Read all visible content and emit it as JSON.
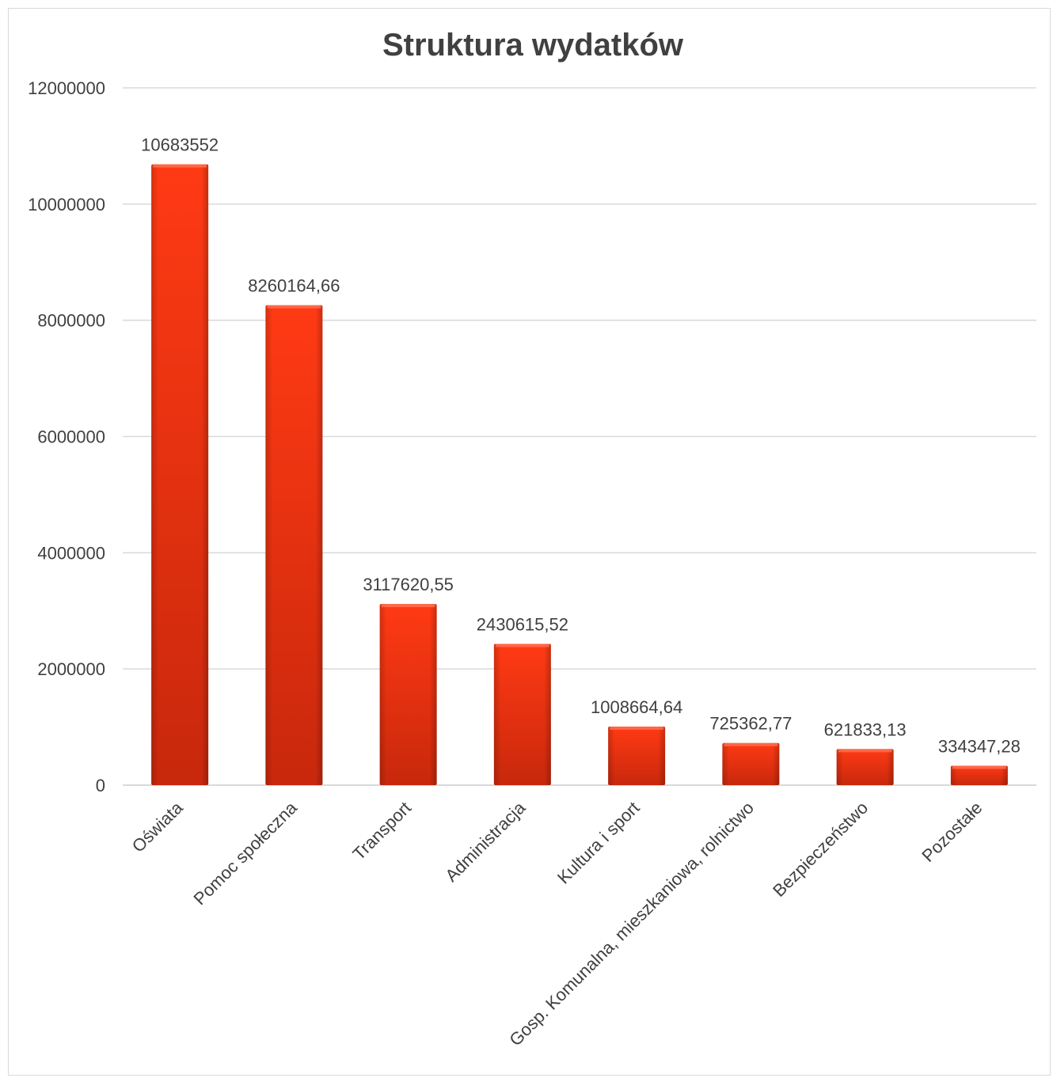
{
  "chart_data": {
    "type": "bar",
    "title": "Struktura wydatków",
    "xlabel": "",
    "ylabel": "",
    "ylim": [
      0,
      12000000
    ],
    "yticks": [
      "0",
      "2000000",
      "4000000",
      "6000000",
      "8000000",
      "10000000",
      "12000000"
    ],
    "categories": [
      "Oświata",
      "Pomoc społeczna",
      "Transport",
      "Administracja",
      "Kultura i sport",
      "Gosp. Komunalna, mieszkaniowa, rolnictwo",
      "Bezpieczeństwo",
      "Pozostałe"
    ],
    "values": [
      10683552,
      8260164.66,
      3117620.55,
      2430615.52,
      1008664.64,
      725362.77,
      621833.13,
      334347.28
    ],
    "data_labels": [
      "10683552",
      "8260164,66",
      "3117620,55",
      "2430615,52",
      "1008664,64",
      "725362,77",
      "621833,13",
      "334347,28"
    ],
    "grid": true,
    "legend": "none",
    "colors": {
      "bar_top": "#ff3a14",
      "bar_bottom": "#c8280c",
      "grid": "#d9d9d9",
      "text": "#404040"
    }
  }
}
